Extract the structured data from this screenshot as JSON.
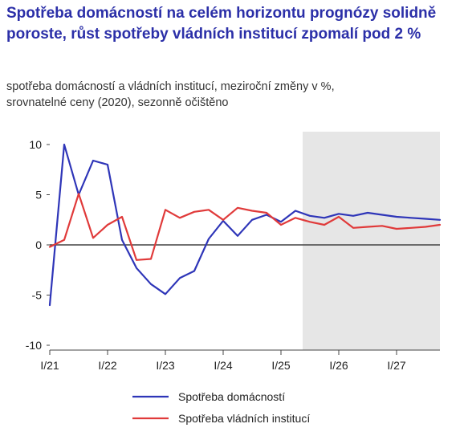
{
  "chart_data": {
    "type": "line",
    "title": "Spotřeba domácností na celém horizontu prognózy solidně poroste, růst spotřeby vládních institucí zpomalí pod 2 %",
    "subtitle_lines": [
      "spotřeba domácností a vládních institucí, meziroční změny v %,",
      "srovnatelné ceny (2020), sezonně očištěno"
    ],
    "xlabel": "",
    "ylabel": "",
    "ylim": [
      -10,
      10
    ],
    "y_ticks": [
      10,
      5,
      0,
      -5,
      -10
    ],
    "y_tick_labels": [
      "10",
      "5",
      "0",
      "-5",
      "-10"
    ],
    "x_ticks": [
      "I/21",
      "I/22",
      "I/23",
      "I/24",
      "I/25",
      "I/26",
      "I/27"
    ],
    "x": [
      "I/21",
      "II/21",
      "III/21",
      "IV/21",
      "I/22",
      "II/22",
      "III/22",
      "IV/22",
      "I/23",
      "II/23",
      "III/23",
      "IV/23",
      "I/24",
      "II/24",
      "III/24",
      "IV/24",
      "I/25",
      "II/25",
      "III/25",
      "IV/25",
      "I/26",
      "II/26",
      "III/26",
      "IV/26",
      "I/27",
      "II/27",
      "III/27",
      "IV/27"
    ],
    "forecast_start": "III/25",
    "grid": false,
    "legend_position": "bottom",
    "series": [
      {
        "name": "Spotřeba domácností",
        "color": "#2e35b8",
        "values": [
          -6.0,
          10.0,
          5.0,
          8.4,
          8.0,
          0.5,
          -2.3,
          -3.9,
          -4.9,
          -3.3,
          -2.6,
          0.6,
          2.4,
          0.9,
          2.5,
          3.0,
          2.3,
          3.4,
          2.9,
          2.7,
          3.1,
          2.9,
          3.2,
          3.0,
          2.8,
          2.7,
          2.6,
          2.5
        ]
      },
      {
        "name": "Spotřeba vládních institucí",
        "color": "#e03a3a",
        "values": [
          -0.2,
          0.5,
          5.1,
          0.7,
          2.0,
          2.8,
          -1.5,
          -1.4,
          3.5,
          2.7,
          3.3,
          3.5,
          2.5,
          3.7,
          3.4,
          3.2,
          2.0,
          2.7,
          2.3,
          2.0,
          2.8,
          1.7,
          1.8,
          1.9,
          1.6,
          1.7,
          1.8,
          2.0
        ]
      }
    ]
  }
}
